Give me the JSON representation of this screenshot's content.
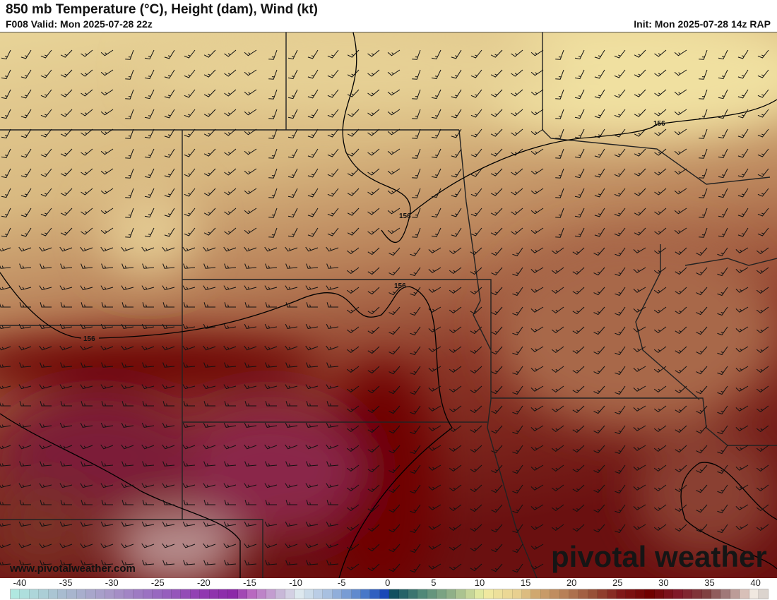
{
  "header": {
    "title": "850 mb Temperature (°C), Height (dam), Wind (kt)",
    "valid": "F008 Valid: Mon 2025-07-28 22z",
    "init": "Init: Mon 2025-07-28 14z RAP"
  },
  "map": {
    "contour_labels": [
      "156",
      "156",
      "156",
      "156"
    ],
    "colors": {
      "cool_north": "#e8d498",
      "mid": "#c49868",
      "warm": "#6a0a0c",
      "magenta": "#8a2848",
      "pink": "#b89090"
    }
  },
  "footer": {
    "url": "www.pivotalweather.com",
    "brand": "pivotal weather"
  },
  "colorbar": {
    "ticks": [
      "-40",
      "-35",
      "-30",
      "-25",
      "-20",
      "-15",
      "-10",
      "-5",
      "0",
      "5",
      "10",
      "15",
      "20",
      "25",
      "30",
      "35",
      "40"
    ],
    "stops": [
      [
        -40,
        "#b0e8e0"
      ],
      [
        -35,
        "#a8bcd0"
      ],
      [
        -30,
        "#a898c8"
      ],
      [
        -25,
        "#9868c0"
      ],
      [
        -20,
        "#9038b0"
      ],
      [
        -17,
        "#8c28a8"
      ],
      [
        -15,
        "#b868c0"
      ],
      [
        -12,
        "#c8b8d8"
      ],
      [
        -10,
        "#dde8ee"
      ],
      [
        -7,
        "#a8c0e0"
      ],
      [
        -3,
        "#4878c8"
      ],
      [
        -1,
        "#1848b8"
      ],
      [
        0,
        "#105060"
      ],
      [
        3,
        "#508878"
      ],
      [
        6,
        "#90b088"
      ],
      [
        9,
        "#e0e8a0"
      ],
      [
        10,
        "#f0e8a0"
      ],
      [
        13,
        "#e8d090"
      ],
      [
        15,
        "#d0a870"
      ],
      [
        18,
        "#b88058"
      ],
      [
        21,
        "#985038"
      ],
      [
        24,
        "#801818"
      ],
      [
        27,
        "#700000"
      ],
      [
        30,
        "#801828"
      ],
      [
        33,
        "#804040"
      ],
      [
        35,
        "#a07878"
      ],
      [
        37,
        "#d8c0b8"
      ],
      [
        38,
        "#f0e8e0"
      ],
      [
        40,
        "#c8c0bc"
      ]
    ]
  }
}
